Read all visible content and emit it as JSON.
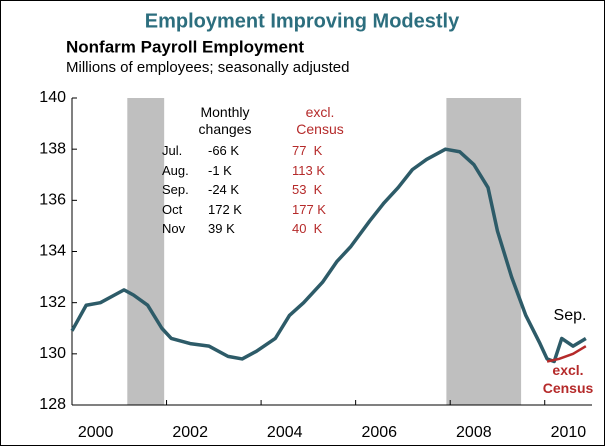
{
  "chart_data": {
    "type": "line",
    "title": "Employment Improving Modestly",
    "subtitle": "Nonfarm Payroll Employment",
    "y_label": "Millions of employees; seasonally adjusted",
    "xlim": [
      2000,
      2011
    ],
    "xticks": [
      2000,
      2002,
      2004,
      2006,
      2008,
      2010
    ],
    "ylim": [
      128,
      140
    ],
    "yticks": [
      128,
      130,
      132,
      134,
      136,
      138,
      140
    ],
    "grid": false,
    "shaded_periods": [
      [
        2001.17,
        2001.95
      ],
      [
        2007.92,
        2009.5
      ]
    ],
    "shade_color": "#bfbfbf",
    "series": [
      {
        "color": "#2d5b68",
        "x": [
          2000.0,
          2000.3,
          2000.6,
          2000.9,
          2001.1,
          2001.3,
          2001.6,
          2001.9,
          2002.1,
          2002.5,
          2002.9,
          2003.3,
          2003.6,
          2003.9,
          2004.3,
          2004.6,
          2004.9,
          2005.3,
          2005.6,
          2005.9,
          2006.3,
          2006.6,
          2006.9,
          2007.2,
          2007.5,
          2007.9,
          2008.2,
          2008.5,
          2008.8,
          2009.0,
          2009.3,
          2009.6,
          2009.9,
          2010.05,
          2010.2,
          2010.36,
          2010.6,
          2010.87
        ],
        "values": [
          130.9,
          131.9,
          132.0,
          132.3,
          132.5,
          132.3,
          131.9,
          131.0,
          130.6,
          130.4,
          130.3,
          129.9,
          129.8,
          130.1,
          130.6,
          131.5,
          132.0,
          132.8,
          133.6,
          134.2,
          135.2,
          135.9,
          136.5,
          137.2,
          137.6,
          138.0,
          137.9,
          137.4,
          136.5,
          134.8,
          133.0,
          131.5,
          130.4,
          129.8,
          129.7,
          130.6,
          130.3,
          130.6
        ]
      },
      {
        "name": "excl. Census",
        "color": "#b52a2a",
        "x": [
          2010.05,
          2010.3,
          2010.6,
          2010.87
        ],
        "values": [
          129.7,
          129.8,
          130.0,
          130.3
        ]
      }
    ],
    "annotation": "Sep.",
    "annotation_table": {
      "headers": [
        "Monthly changes",
        "excl. Census"
      ],
      "rows": [
        [
          "Jul.",
          "-66 K",
          "77  K"
        ],
        [
          "Aug.",
          "-1 K",
          "113 K"
        ],
        [
          "Sep.",
          "-24 K",
          "53  K"
        ],
        [
          "Oct",
          "172 K",
          "177 K"
        ],
        [
          "Nov",
          "39 K",
          "40  K"
        ]
      ]
    }
  }
}
